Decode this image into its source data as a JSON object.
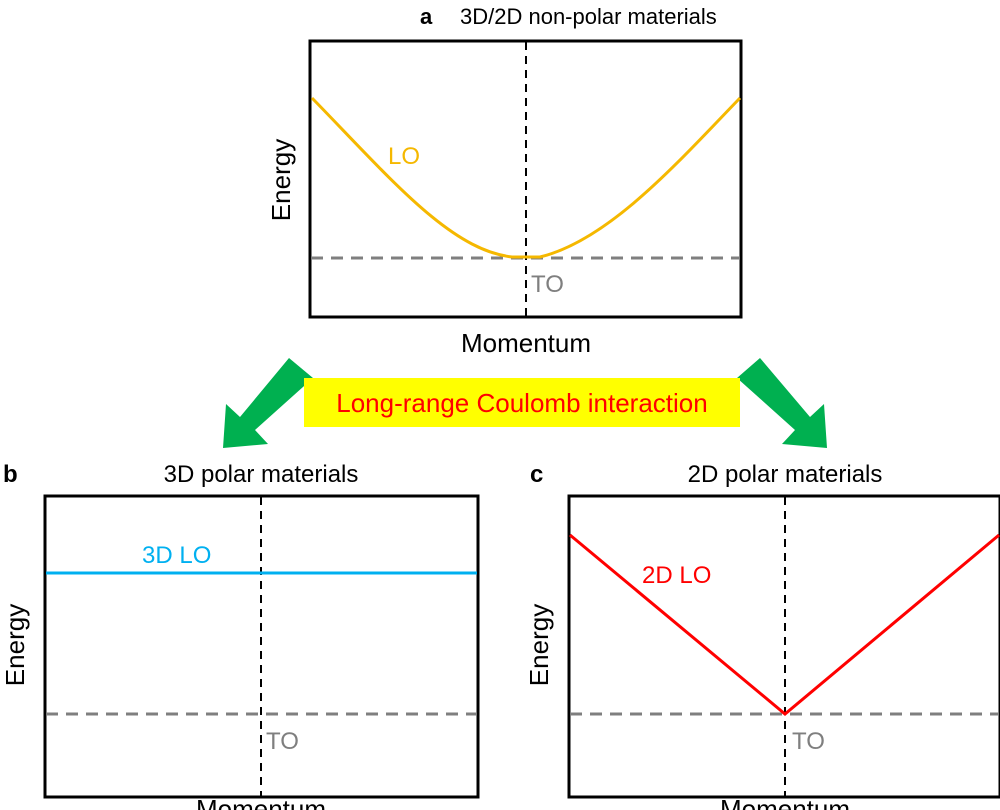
{
  "panels": {
    "a": {
      "letter": "a",
      "title": "3D/2D non-polar materials",
      "xlabel": "Momentum",
      "ylabel": "Energy",
      "lo_label": "LO",
      "to_label": "TO"
    },
    "b": {
      "letter": "b",
      "title": "3D polar materials",
      "xlabel": "Momentum",
      "ylabel": "Energy",
      "lo_label": "3D LO",
      "to_label": "TO"
    },
    "c": {
      "letter": "c",
      "title": "2D polar materials",
      "xlabel": "Momentum",
      "ylabel": "Energy",
      "lo_label": "2D LO",
      "to_label": "TO"
    }
  },
  "banner": {
    "text": "Long-range Coulomb interaction"
  },
  "colors": {
    "lo_nonpolar": "#f5b800",
    "lo_3d": "#00b0f0",
    "lo_2d": "#ff0000",
    "to": "#7f7f7f",
    "arrow": "#00b050",
    "banner_bg": "#ffff00",
    "banner_text": "#ff0000"
  }
}
